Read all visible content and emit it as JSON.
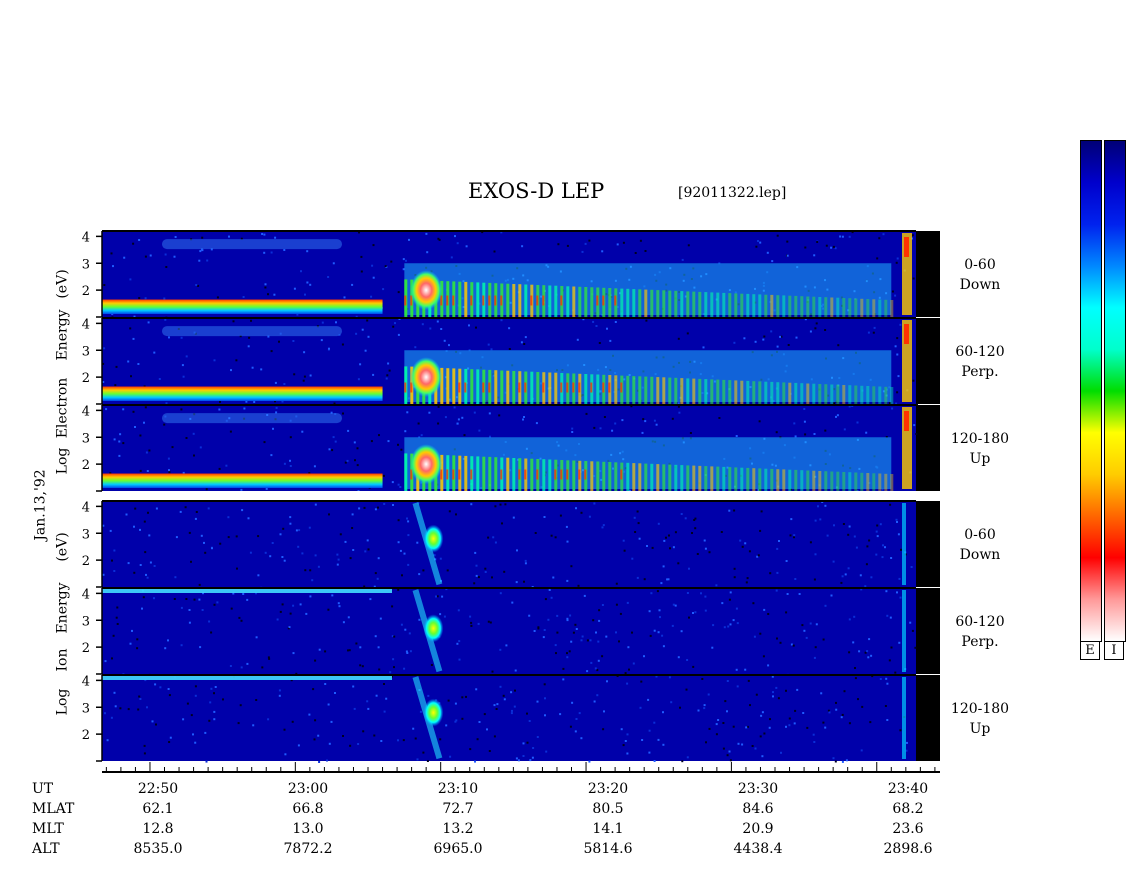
{
  "header": {
    "title": "EXOS-D LEP",
    "file": "[92011322.lep]"
  },
  "colors": {
    "background": "#0000aa",
    "black_band": "#000000",
    "colorbar_stops": [
      "#ffffff",
      "#ff9999",
      "#ff0000",
      "#ff6600",
      "#ffcc00",
      "#ffff00",
      "#00dd00",
      "#00ffcc",
      "#00ffff",
      "#0088ff",
      "#0022ee",
      "#0000cc",
      "#000077"
    ]
  },
  "y_axis_labels": {
    "electron": [
      "Log",
      "Electron",
      "Energy",
      "(eV)"
    ],
    "ion": [
      "Log",
      "Ion",
      "Energy",
      "(eV)"
    ],
    "date": "Jan.13,'92"
  },
  "colorbar": {
    "labels": [
      "E",
      "I"
    ]
  },
  "chart_data": {
    "type": "heatmap",
    "title": "EXOS-D LEP",
    "xlabel": "UT",
    "ylabel": "Log Energy (eV)",
    "ylim": [
      1,
      4.2
    ],
    "yticks": [
      4,
      3,
      2
    ],
    "xticks": [
      "22:50",
      "23:00",
      "23:10",
      "23:20",
      "23:30",
      "23:40"
    ],
    "xlim_minutes": [
      -3.3,
      52.7
    ],
    "panels": [
      {
        "species": "Electron",
        "pitch": "0-60",
        "direction": "Down",
        "baseline": 1.3,
        "baseline_end_min": 16,
        "burst_center_min": 19.0,
        "burst_level": 2.0,
        "burst_top": 3.0,
        "band_end_min": 52
      },
      {
        "species": "Electron",
        "pitch": "60-120",
        "direction": "Perp.",
        "baseline": 1.3,
        "baseline_end_min": 16,
        "burst_center_min": 19.0,
        "burst_level": 2.0,
        "burst_top": 3.0,
        "band_end_min": 52
      },
      {
        "species": "Electron",
        "pitch": "120-180",
        "direction": "Up",
        "baseline": 1.3,
        "baseline_end_min": 16,
        "burst_center_min": 19.0,
        "burst_level": 2.0,
        "burst_top": 3.0,
        "band_end_min": 52
      },
      {
        "species": "Ion",
        "pitch": "0-60",
        "direction": "Down",
        "burst_center_min": 19.5,
        "burst_level": 2.8
      },
      {
        "species": "Ion",
        "pitch": "60-120",
        "direction": "Perp.",
        "burst_center_min": 19.5,
        "burst_level": 2.7
      },
      {
        "species": "Ion",
        "pitch": "120-180",
        "direction": "Up",
        "burst_center_min": 19.5,
        "burst_level": 2.8
      }
    ],
    "ephemeris": {
      "rows": [
        {
          "label": "UT",
          "values": [
            "22:50",
            "23:00",
            "23:10",
            "23:20",
            "23:30",
            "23:40"
          ]
        },
        {
          "label": "MLAT",
          "values": [
            "62.1",
            "66.8",
            "72.7",
            "80.5",
            "84.6",
            "68.2"
          ]
        },
        {
          "label": "MLT",
          "values": [
            "12.8",
            "13.0",
            "13.2",
            "14.1",
            "20.9",
            "23.6"
          ]
        },
        {
          "label": "ALT",
          "values": [
            "8535.0",
            "7872.2",
            "6965.0",
            "5814.6",
            "4438.4",
            "2898.6"
          ]
        }
      ]
    }
  }
}
